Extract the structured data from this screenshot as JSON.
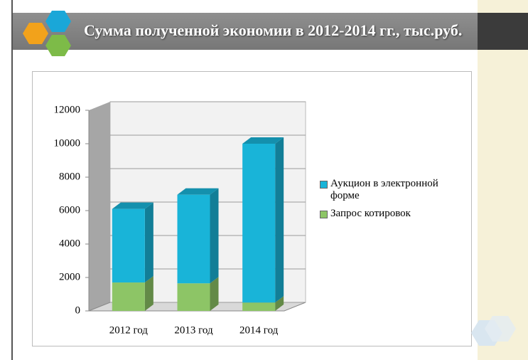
{
  "chart_data": {
    "type": "bar",
    "stacked": true,
    "title": "Сумма полученной экономии в 2012-2014 гг., тыс.руб.",
    "categories": [
      "2012 год",
      "2013 год",
      "2014 год"
    ],
    "series": [
      {
        "name": "Запрос котировок",
        "color": "#8dc566",
        "values": [
          1700,
          1650,
          500
        ]
      },
      {
        "name": "Аукцион в электронной форме",
        "color": "#19b4d8",
        "values": [
          4400,
          5300,
          9500
        ]
      }
    ],
    "ylim": [
      0,
      12000
    ],
    "yticks": [
      0,
      2000,
      4000,
      6000,
      8000,
      10000,
      12000
    ],
    "grid": true
  }
}
